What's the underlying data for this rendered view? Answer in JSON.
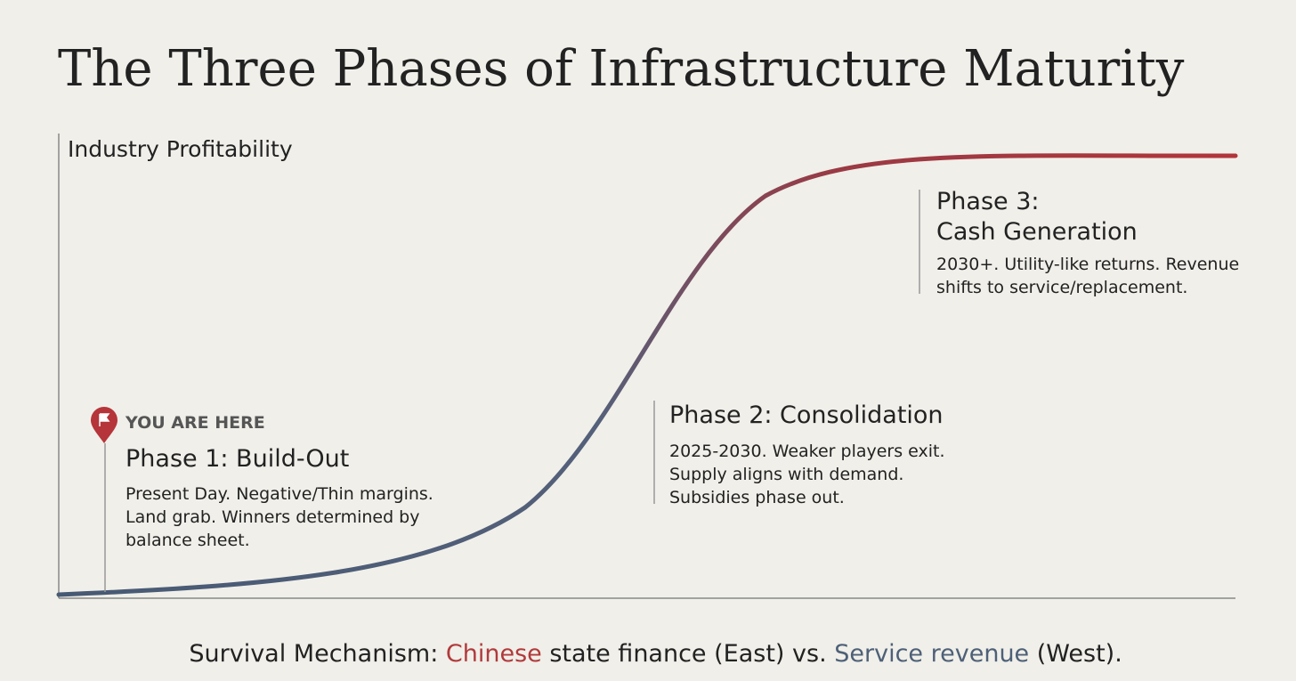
{
  "title": "The Three Phases of Infrastructure Maturity",
  "y_axis_label": "Industry Profitability",
  "marker": "YOU ARE HERE",
  "phases": [
    {
      "title": [
        "Phase 1: Build-Out"
      ],
      "description": [
        "Present Day. Negative/Thin margins.",
        "Land grab. Winners determined by",
        "balance sheet."
      ]
    },
    {
      "title": [
        "Phase 2: Consolidation"
      ],
      "description": [
        "2025-2030. Weaker players exit.",
        "Supply aligns with demand.",
        "Subsidies phase out."
      ]
    },
    {
      "title": [
        "Phase 3:",
        "Cash Generation"
      ],
      "description": [
        "2030+. Utility-like returns. Revenue",
        "shifts to service/replacement."
      ]
    }
  ],
  "footer": [
    "Survival Mechanism: ",
    "Chinese",
    " state finance (East) vs. ",
    "Service revenue",
    " (West)."
  ]
}
